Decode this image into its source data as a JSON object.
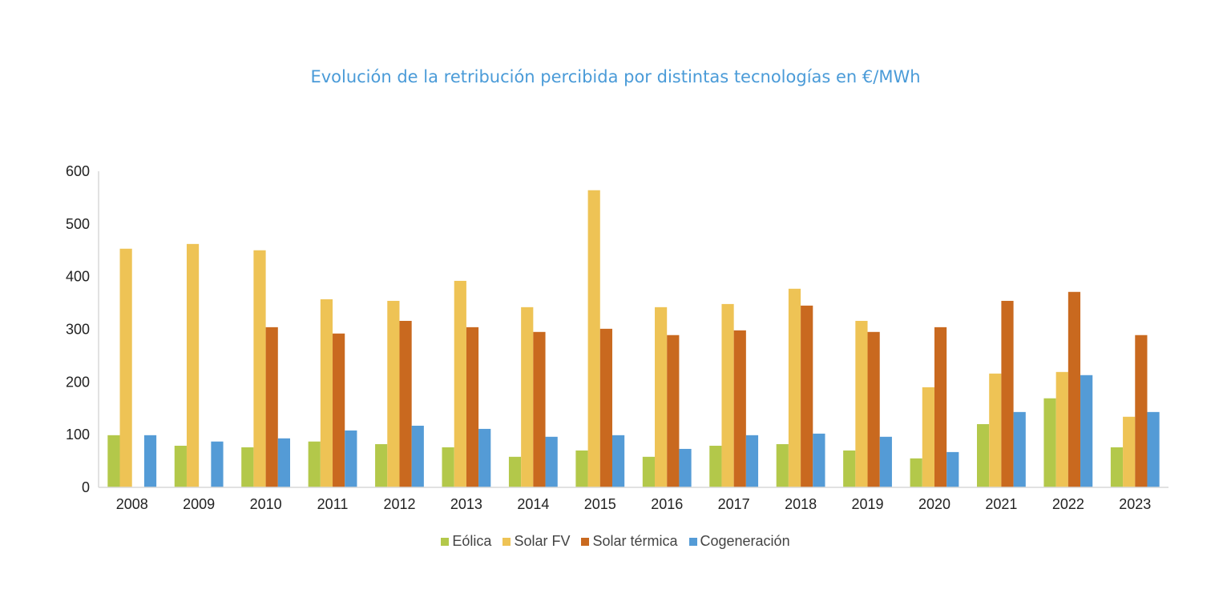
{
  "chart_data": {
    "type": "bar",
    "title": "Evolución de la retribución percibida por distintas tecnologías en €/MWh",
    "xlabel": "",
    "ylabel": "",
    "ylim": [
      0,
      600
    ],
    "yticks": [
      0,
      100,
      200,
      300,
      400,
      500,
      600
    ],
    "grid": false,
    "legend_position": "bottom",
    "categories": [
      "2008",
      "2009",
      "2010",
      "2011",
      "2012",
      "2013",
      "2014",
      "2015",
      "2016",
      "2017",
      "2018",
      "2019",
      "2020",
      "2021",
      "2022",
      "2023"
    ],
    "series": [
      {
        "name": "Eólica",
        "color": "#b3c84a",
        "values": [
          99,
          79,
          76,
          87,
          82,
          76,
          58,
          70,
          58,
          79,
          82,
          70,
          55,
          120,
          169,
          76
        ]
      },
      {
        "name": "Solar FV",
        "color": "#eec355",
        "values": [
          453,
          462,
          450,
          357,
          354,
          392,
          342,
          564,
          342,
          348,
          377,
          316,
          190,
          216,
          219,
          134
        ]
      },
      {
        "name": "Solar térmica",
        "color": "#c9691f",
        "values": [
          null,
          null,
          304,
          292,
          316,
          304,
          295,
          301,
          289,
          298,
          345,
          295,
          304,
          354,
          371,
          289
        ]
      },
      {
        "name": "Cogeneración",
        "color": "#549bd6",
        "values": [
          99,
          87,
          93,
          108,
          117,
          111,
          96,
          99,
          73,
          99,
          102,
          96,
          67,
          143,
          213,
          143
        ]
      }
    ]
  }
}
